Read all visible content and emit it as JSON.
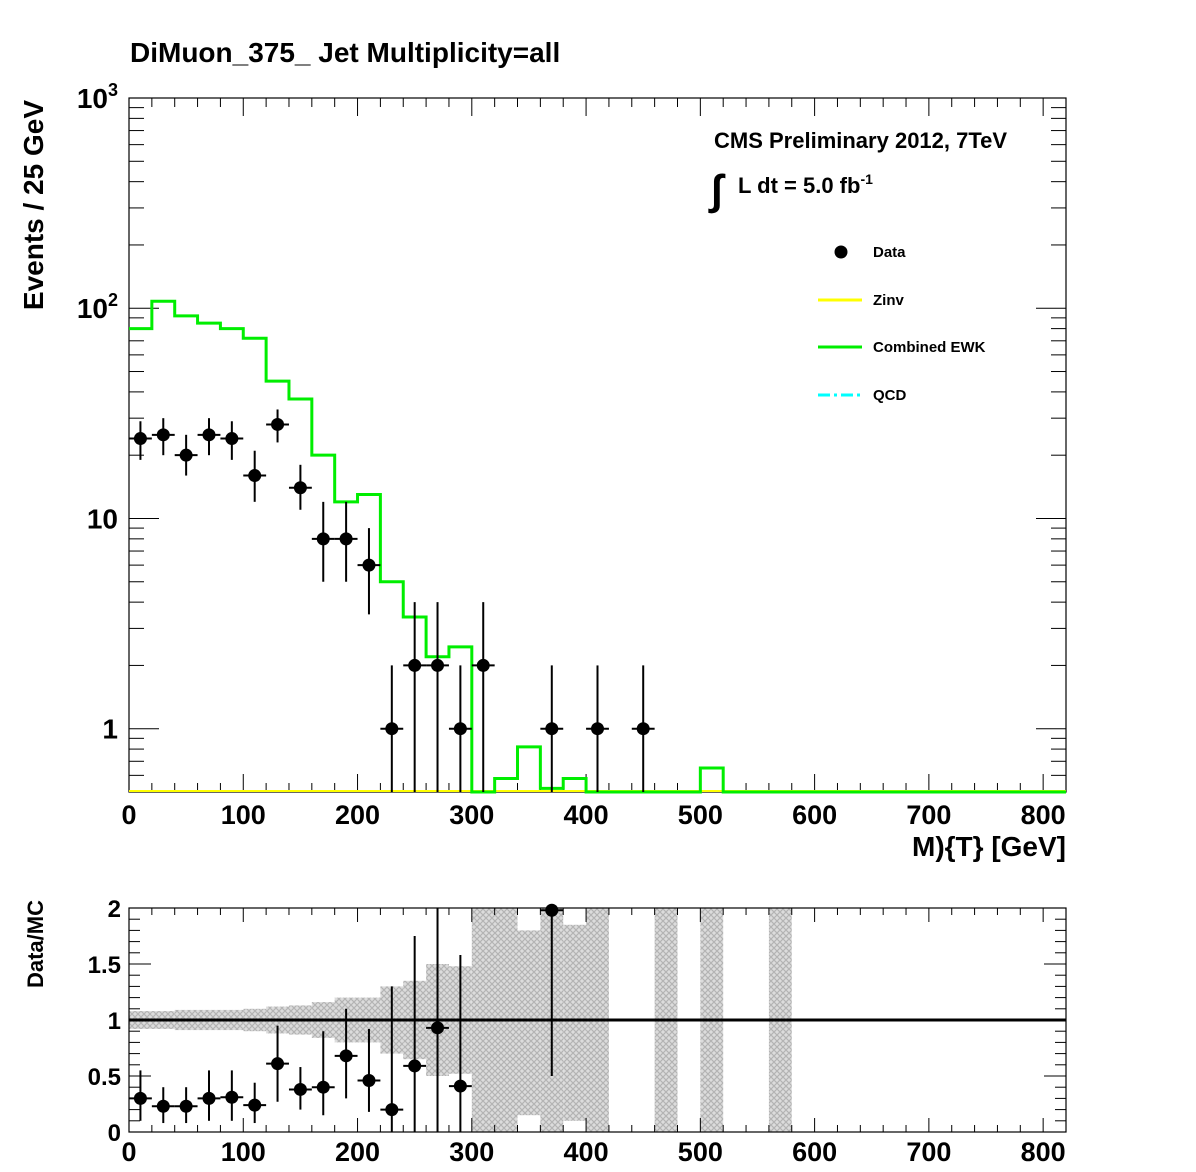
{
  "chart_data": [
    {
      "type": "line",
      "panel": "main",
      "title": "DiMuon_375_    Jet Multiplicity=all",
      "xlabel": "M){T} [GeV]",
      "ylabel": "Events / 25 GeV",
      "xlim": [
        0,
        820
      ],
      "ylim": [
        0.5,
        1000
      ],
      "yscale": "log",
      "x_ticks": [
        0,
        100,
        200,
        300,
        400,
        500,
        600,
        700,
        800
      ],
      "y_tick_labels": [
        {
          "value": 1,
          "label": "1",
          "sup": ""
        },
        {
          "value": 10,
          "label": "10",
          "sup": ""
        },
        {
          "value": 100,
          "label": "10",
          "sup": "2"
        },
        {
          "value": 1000,
          "label": "10",
          "sup": "3"
        }
      ],
      "annotations": {
        "experiment": "CMS Preliminary 2012, 7TeV",
        "integral_sign": "∫",
        "lumi_text": "L dt = 5.0 fb",
        "lumi_exp": "-1"
      },
      "legend": [
        {
          "label": "Data",
          "style": "marker",
          "color": "#000000"
        },
        {
          "label": "Zinv",
          "style": "line",
          "color": "#ffff00"
        },
        {
          "label": "Combined EWK",
          "style": "line",
          "color": "#00ee00"
        },
        {
          "label": "QCD",
          "style": "dashdot",
          "color": "#00ffff"
        }
      ],
      "series": [
        {
          "name": "Combined EWK",
          "color": "#00ee00",
          "bin_edges": [
            0,
            20,
            40,
            60,
            80,
            100,
            120,
            140,
            160,
            180,
            200,
            220,
            240,
            260,
            280,
            300,
            320,
            340,
            360,
            380,
            400,
            420,
            440,
            460,
            480,
            500,
            520,
            540,
            560,
            580,
            600,
            620,
            640,
            660,
            680,
            700,
            720,
            740,
            760,
            780,
            800,
            820
          ],
          "values": [
            80,
            108,
            92,
            85,
            80,
            72,
            45,
            37,
            20,
            12,
            13,
            5,
            3.4,
            2.2,
            2.45,
            0.5,
            0.58,
            0.82,
            0.52,
            0.58,
            0.5,
            0.5,
            0.5,
            0.5,
            0.5,
            0.65,
            0.5,
            0.5,
            0.5,
            0.5,
            0.5,
            0.5,
            0.5,
            0.5,
            0.5,
            0.5,
            0.5,
            0.5,
            0.5,
            0.5,
            0.5
          ]
        },
        {
          "name": "Zinv",
          "color": "#ffff00",
          "values": [
            0.5,
            0.5
          ]
        },
        {
          "name": "Data",
          "color": "#000000",
          "x": [
            10,
            30,
            50,
            70,
            90,
            110,
            130,
            150,
            170,
            190,
            210,
            230,
            250,
            270,
            290,
            310,
            370,
            410,
            450
          ],
          "y": [
            24,
            25,
            20,
            25,
            24,
            16,
            28,
            14,
            8,
            8,
            6,
            1,
            2,
            2,
            1,
            2,
            1,
            1,
            1
          ],
          "y_low": [
            19,
            20,
            16,
            20,
            19,
            12,
            23,
            11,
            5,
            5,
            3.5,
            0.5,
            0.5,
            0.5,
            0.5,
            0.5,
            0.5,
            0.5,
            0.5
          ],
          "y_high": [
            29,
            30,
            25,
            30,
            29,
            21,
            33,
            18,
            12,
            12,
            9,
            2,
            4,
            4,
            2,
            4,
            2,
            2,
            2
          ]
        }
      ]
    },
    {
      "type": "scatter",
      "panel": "ratio",
      "xlabel": "",
      "ylabel": "Data/MC",
      "xlim": [
        0,
        820
      ],
      "ylim": [
        0,
        2
      ],
      "x_ticks": [
        0,
        100,
        200,
        300,
        400,
        500,
        600,
        700,
        800
      ],
      "y_ticks": [
        {
          "value": 0,
          "label": "0"
        },
        {
          "value": 0.5,
          "label": "0.5"
        },
        {
          "value": 1,
          "label": "1"
        },
        {
          "value": 1.5,
          "label": "1.5"
        },
        {
          "value": 2,
          "label": "2"
        }
      ],
      "reference_line": 1,
      "uncertainty_band": {
        "color": "#c8c8c8",
        "bins": [
          {
            "x0": 0,
            "x1": 20,
            "lo": 0.92,
            "hi": 1.08
          },
          {
            "x0": 20,
            "x1": 40,
            "lo": 0.92,
            "hi": 1.08
          },
          {
            "x0": 40,
            "x1": 60,
            "lo": 0.91,
            "hi": 1.09
          },
          {
            "x0": 60,
            "x1": 80,
            "lo": 0.91,
            "hi": 1.09
          },
          {
            "x0": 80,
            "x1": 100,
            "lo": 0.91,
            "hi": 1.09
          },
          {
            "x0": 100,
            "x1": 120,
            "lo": 0.9,
            "hi": 1.1
          },
          {
            "x0": 120,
            "x1": 140,
            "lo": 0.88,
            "hi": 1.12
          },
          {
            "x0": 140,
            "x1": 160,
            "lo": 0.87,
            "hi": 1.13
          },
          {
            "x0": 160,
            "x1": 180,
            "lo": 0.84,
            "hi": 1.16
          },
          {
            "x0": 180,
            "x1": 200,
            "lo": 0.8,
            "hi": 1.2
          },
          {
            "x0": 200,
            "x1": 220,
            "lo": 0.8,
            "hi": 1.2
          },
          {
            "x0": 220,
            "x1": 240,
            "lo": 0.7,
            "hi": 1.3
          },
          {
            "x0": 240,
            "x1": 260,
            "lo": 0.65,
            "hi": 1.35
          },
          {
            "x0": 260,
            "x1": 280,
            "lo": 0.5,
            "hi": 1.5
          },
          {
            "x0": 280,
            "x1": 300,
            "lo": 0.52,
            "hi": 1.48
          },
          {
            "x0": 300,
            "x1": 340,
            "lo": 0,
            "hi": 2
          },
          {
            "x0": 340,
            "x1": 360,
            "lo": 0.15,
            "hi": 1.8
          },
          {
            "x0": 360,
            "x1": 380,
            "lo": 0,
            "hi": 2
          },
          {
            "x0": 380,
            "x1": 400,
            "lo": 0.1,
            "hi": 1.85
          },
          {
            "x0": 400,
            "x1": 420,
            "lo": 0,
            "hi": 2
          },
          {
            "x0": 460,
            "x1": 480,
            "lo": 0,
            "hi": 2
          },
          {
            "x0": 500,
            "x1": 520,
            "lo": 0,
            "hi": 2
          },
          {
            "x0": 560,
            "x1": 580,
            "lo": 0,
            "hi": 2
          }
        ]
      },
      "series": [
        {
          "name": "Data/MC",
          "color": "#000000",
          "x": [
            10,
            30,
            50,
            70,
            90,
            110,
            130,
            150,
            170,
            190,
            210,
            230,
            250,
            270,
            290,
            370
          ],
          "y": [
            0.3,
            0.23,
            0.23,
            0.3,
            0.31,
            0.24,
            0.61,
            0.38,
            0.4,
            0.68,
            0.46,
            0.2,
            0.59,
            0.93,
            0.41,
            1.98
          ],
          "y_low": [
            0.1,
            0.08,
            0.08,
            0.1,
            0.1,
            0.08,
            0.27,
            0.2,
            0.15,
            0.3,
            0.18,
            0,
            0,
            0,
            0,
            0.5
          ],
          "y_high": [
            0.55,
            0.4,
            0.4,
            0.55,
            0.55,
            0.44,
            0.95,
            0.58,
            0.9,
            1.1,
            0.92,
            1.3,
            1.75,
            2,
            1.58,
            2
          ]
        }
      ]
    }
  ]
}
